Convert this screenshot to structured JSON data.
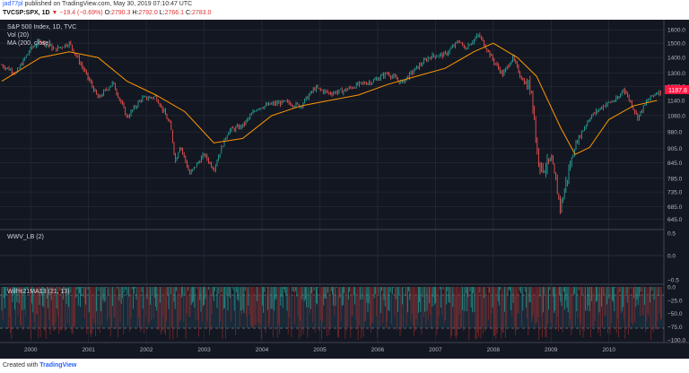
{
  "header": {
    "author": "jad77pl",
    "published_text": "published on TradingView.com, May 30, 2019 07:10:47 UTC",
    "symbol": "TVCSP:SPX, 1D",
    "change_arrow": "▼",
    "change": "−19.4 (−0.69%)",
    "ohlc": {
      "o_label": "O:",
      "o": "2790.3",
      "h_label": "H:",
      "h": "2792.0",
      "l_label": "L:",
      "l": "2766.1",
      "c_label": "C:",
      "c": "2783.0"
    }
  },
  "legend": {
    "title": "S&P 500 Index, 1D, TVC",
    "vol": "Vol (20)",
    "ma": "MA (200, close)",
    "wwv": "WWV_LB (2)",
    "willr": "Will%21MA13 (21, 13)"
  },
  "price_label": "1187.8",
  "colors": {
    "bg": "#131722",
    "up": "#26a69a",
    "down": "#ef5350",
    "ma": "#ff9800",
    "grid": "#2a2e39",
    "label": "#ff1744"
  },
  "footer": {
    "created_with": "Created with",
    "brand": "TradingView"
  },
  "chart_data": [
    {
      "type": "line",
      "title": "S&P 500 Index, 1D, TVC",
      "x": [
        "1999-07",
        "1999-10",
        "2000-01",
        "2000-03",
        "2000-06",
        "2000-09",
        "2000-12",
        "2001-03",
        "2001-06",
        "2001-09",
        "2001-12",
        "2002-03",
        "2002-06",
        "2002-07",
        "2002-08",
        "2002-10",
        "2003-01",
        "2003-03",
        "2003-06",
        "2003-09",
        "2003-12",
        "2004-03",
        "2004-06",
        "2004-09",
        "2004-12",
        "2005-03",
        "2005-06",
        "2005-09",
        "2005-12",
        "2006-03",
        "2006-06",
        "2006-09",
        "2006-12",
        "2007-03",
        "2007-06",
        "2007-07",
        "2007-10",
        "2008-01",
        "2008-03",
        "2008-05",
        "2008-07",
        "2008-09",
        "2008-10",
        "2008-11",
        "2009-01",
        "2009-03",
        "2009-06",
        "2009-09",
        "2009-12",
        "2010-03",
        "2010-04",
        "2010-07",
        "2010-09",
        "2010-11"
      ],
      "series": [
        {
          "values": [
            1350,
            1300,
            1460,
            1520,
            1455,
            1500,
            1320,
            1150,
            1240,
            1050,
            1150,
            1160,
            1010,
            850,
            920,
            800,
            880,
            820,
            985,
            1010,
            1100,
            1120,
            1130,
            1110,
            1210,
            1180,
            1195,
            1230,
            1250,
            1300,
            1240,
            1330,
            1410,
            1420,
            1520,
            1460,
            1560,
            1380,
            1290,
            1400,
            1260,
            1200,
            900,
            820,
            850,
            680,
            920,
            1050,
            1115,
            1150,
            1210,
            1050,
            1140,
            1188
          ]
        }
      ],
      "yticks": [
        "1600.0",
        "1500.0",
        "1400.0",
        "1300.0",
        "1220.0",
        "1140.0",
        "1060.0",
        "980.0",
        "905.0",
        "845.0",
        "785.0",
        "735.0",
        "685.0",
        "645.0"
      ],
      "xticks": [
        "2000",
        "2001",
        "2002",
        "2003",
        "2004",
        "2005",
        "2006",
        "2007",
        "2008",
        "2009",
        "2010"
      ],
      "scale": "log",
      "ylim": [
        630,
        1650
      ]
    },
    {
      "type": "line",
      "title": "MA (200, close)",
      "x": [
        "1999-07",
        "2000-03",
        "2000-09",
        "2001-03",
        "2001-09",
        "2002-03",
        "2002-09",
        "2003-03",
        "2003-09",
        "2004-03",
        "2004-09",
        "2005-03",
        "2005-09",
        "2006-03",
        "2006-09",
        "2007-03",
        "2007-09",
        "2008-01",
        "2008-06",
        "2008-10",
        "2009-03",
        "2009-06",
        "2009-09",
        "2010-01",
        "2010-06",
        "2010-11"
      ],
      "series": [
        {
          "values": [
            1250,
            1400,
            1440,
            1400,
            1250,
            1170,
            1080,
            930,
            950,
            1060,
            1110,
            1140,
            1170,
            1230,
            1280,
            1330,
            1440,
            1500,
            1400,
            1280,
            1000,
            880,
            910,
            1040,
            1110,
            1140
          ]
        }
      ]
    },
    {
      "type": "line",
      "title": "WWV_LB (2)",
      "yticks": [
        "0.5",
        "0.0",
        "−0.5"
      ],
      "ylim": [
        -0.5,
        0.5
      ]
    },
    {
      "type": "area",
      "title": "Will%21MA13 (21, 13)",
      "yticks": [
        "0.0",
        "−25.0",
        "−50.0",
        "−75.0",
        "−100.0"
      ],
      "ylim": [
        -100,
        0
      ]
    }
  ]
}
